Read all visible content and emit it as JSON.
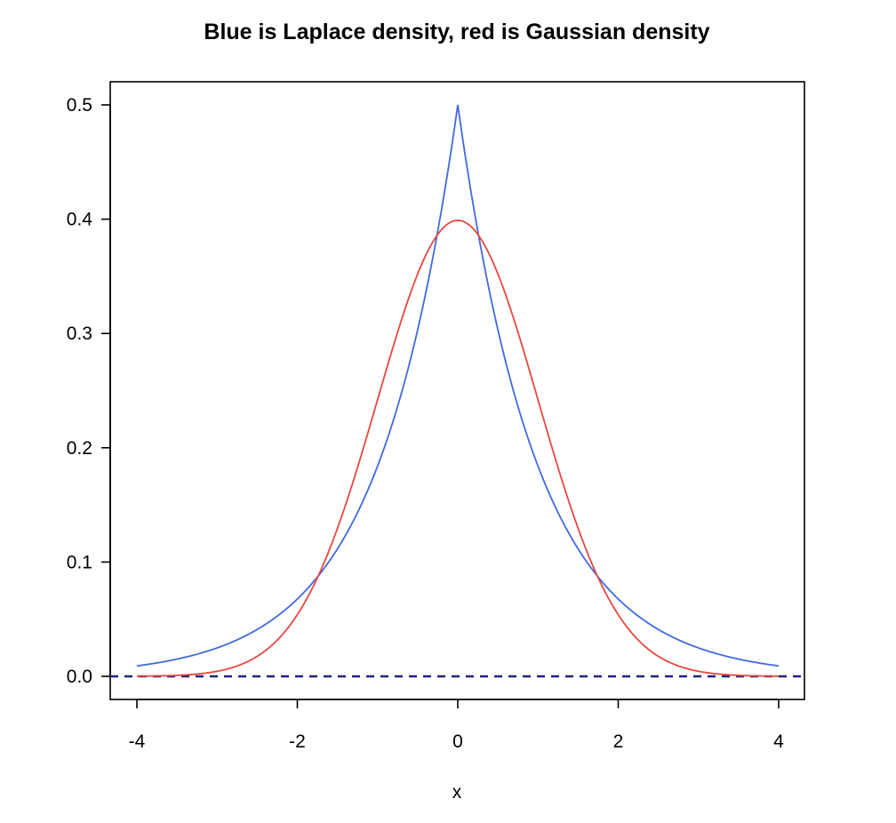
{
  "chart_data": {
    "type": "line",
    "title": "Blue is Laplace density, red is Gaussian density",
    "xlabel": "x",
    "ylabel": "",
    "xlim": [
      -4.3,
      4.3
    ],
    "ylim": [
      -0.02,
      0.52
    ],
    "x_ticks": [
      -4,
      -2,
      0,
      2,
      4
    ],
    "y_ticks": [
      0.0,
      0.1,
      0.2,
      0.3,
      0.4,
      0.5
    ],
    "x_tick_labels": [
      "-4",
      "-2",
      "0",
      "2",
      "4"
    ],
    "y_tick_labels": [
      "0.0",
      "0.1",
      "0.2",
      "0.3",
      "0.4",
      "0.5"
    ],
    "grid": false,
    "x": [
      -4,
      -3.5,
      -3,
      -2.5,
      -2,
      -1.5,
      -1,
      -0.5,
      0,
      0.5,
      1,
      1.5,
      2,
      2.5,
      3,
      3.5,
      4
    ],
    "series": [
      {
        "color": "#4169e1",
        "values": [
          0.0092,
          0.0151,
          0.0249,
          0.041,
          0.0677,
          0.1116,
          0.1839,
          0.3033,
          0.5,
          0.3033,
          0.1839,
          0.1116,
          0.0677,
          0.041,
          0.0249,
          0.0151,
          0.0092
        ]
      },
      {
        "color": "#e8473f",
        "values": [
          0.0001,
          0.0009,
          0.0044,
          0.0175,
          0.054,
          0.1295,
          0.242,
          0.3521,
          0.3989,
          0.3521,
          0.242,
          0.1295,
          0.054,
          0.0175,
          0.0044,
          0.0009,
          0.0001
        ]
      }
    ],
    "reference_line": {
      "y": 0,
      "style": "dashed",
      "color": "#1a237e"
    }
  }
}
